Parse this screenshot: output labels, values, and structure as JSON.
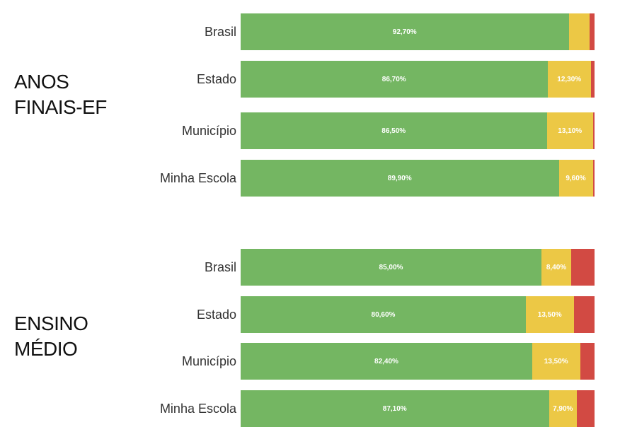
{
  "colors": {
    "green": "#74b662",
    "yellow": "#ecc845",
    "red": "#d24a43"
  },
  "chart_data": [
    {
      "type": "bar",
      "orientation": "horizontal",
      "stacked": true,
      "group_title_lines": [
        "ANOS",
        "FINAIS-EF"
      ],
      "categories": [
        "Brasil",
        "Estado",
        "Município",
        "Minha Escola"
      ],
      "series": [
        {
          "color": "green",
          "values": [
            92.7,
            86.7,
            86.5,
            89.9
          ],
          "labels": [
            "92,70%",
            "86,70%",
            "86,50%",
            "89,90%"
          ]
        },
        {
          "color": "yellow",
          "values": [
            5.9,
            12.3,
            13.1,
            9.6
          ],
          "labels": [
            "",
            "12,30%",
            "13,10%",
            "9,60%"
          ]
        },
        {
          "color": "red",
          "values": [
            1.4,
            1.0,
            0.4,
            0.5
          ],
          "labels": [
            "",
            "",
            "",
            ""
          ]
        }
      ]
    },
    {
      "type": "bar",
      "orientation": "horizontal",
      "stacked": true,
      "group_title_lines": [
        "ENSINO",
        "MÉDIO"
      ],
      "categories": [
        "Brasil",
        "Estado",
        "Município",
        "Minha Escola"
      ],
      "series": [
        {
          "color": "green",
          "values": [
            85.0,
            80.6,
            82.4,
            87.1
          ],
          "labels": [
            "85,00%",
            "80,60%",
            "82,40%",
            "87,10%"
          ]
        },
        {
          "color": "yellow",
          "values": [
            8.4,
            13.5,
            13.5,
            7.9
          ],
          "labels": [
            "8,40%",
            "13,50%",
            "13,50%",
            "7,90%"
          ]
        },
        {
          "color": "red",
          "values": [
            6.6,
            5.9,
            4.1,
            5.0
          ],
          "labels": [
            "",
            "",
            "",
            ""
          ]
        }
      ]
    }
  ]
}
